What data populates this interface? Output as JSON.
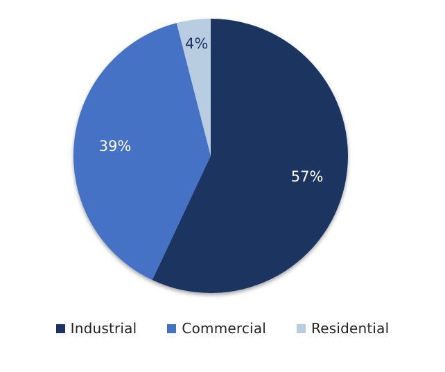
{
  "chart_data": {
    "type": "pie",
    "title": "",
    "categories": [
      "Industrial",
      "Commercial",
      "Residential"
    ],
    "values": [
      57,
      39,
      4
    ],
    "labels": [
      "57%",
      "39%",
      "4%"
    ],
    "colors": [
      "#1b3461",
      "#4472c4",
      "#b9cde0"
    ],
    "label_colors": [
      "#ffffff",
      "#ffffff",
      "#1b3461"
    ],
    "legend_placement": "bottom"
  },
  "legend": {
    "items": [
      {
        "label": "Industrial",
        "color": "#1b3461"
      },
      {
        "label": "Commercial",
        "color": "#4472c4"
      },
      {
        "label": "Residential",
        "color": "#b9cde0"
      }
    ]
  }
}
